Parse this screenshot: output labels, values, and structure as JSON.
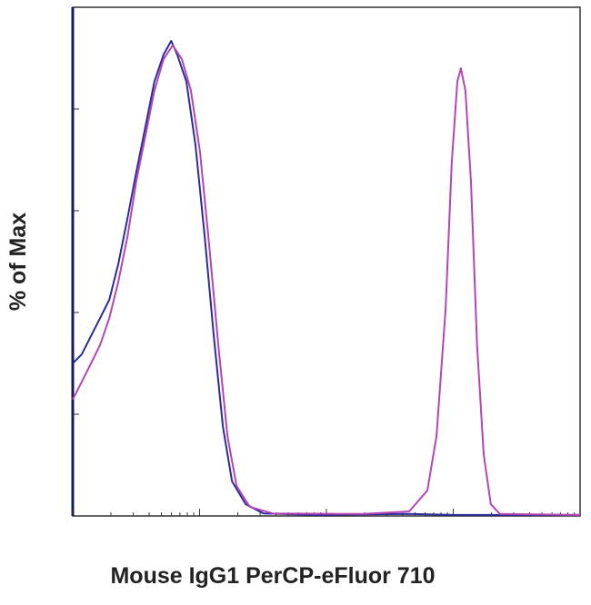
{
  "chart_data": {
    "type": "line",
    "x_label": "Mouse IgG1 PerCP-eFluor 710",
    "y_label": "% of Max",
    "xlim": [
      0,
      1000
    ],
    "ylim": [
      0,
      100
    ],
    "series": [
      {
        "color": "#2b2b9c",
        "x": [
          0,
          18,
          36,
          54,
          72,
          90,
          108,
          125,
          143,
          161,
          179,
          194,
          206,
          224,
          242,
          260,
          278,
          296,
          314,
          341,
          376,
          484,
          663,
          753,
          1000
        ],
        "values": [
          30,
          31.8,
          35.4,
          38.9,
          42.5,
          49.6,
          58.6,
          67.5,
          76.4,
          85.4,
          90.7,
          93.4,
          90.7,
          85.4,
          72.9,
          55,
          35.4,
          17.5,
          6.8,
          2.3,
          0.5,
          0.2,
          0.4,
          0.2,
          0.2
        ]
      },
      {
        "color": "#b445b4",
        "x": [
          0,
          18,
          36,
          54,
          72,
          90,
          108,
          125,
          143,
          161,
          179,
          197,
          215,
          233,
          251,
          269,
          287,
          305,
          323,
          349,
          394,
          573,
          663,
          699,
          717,
          735,
          747,
          758,
          765,
          774,
          785,
          797,
          810,
          824,
          842,
          1000
        ],
        "values": [
          22.9,
          26.4,
          30,
          33.6,
          38.9,
          46.1,
          55,
          65.7,
          74.6,
          83.6,
          89.8,
          92.5,
          89.8,
          83.6,
          71.4,
          53.2,
          33.6,
          15.7,
          5.9,
          1.8,
          0.5,
          0.4,
          0.9,
          5,
          15.7,
          40.7,
          69.3,
          85.4,
          88,
          83.6,
          65.7,
          33.6,
          12.1,
          2.3,
          0.4,
          0.2
        ]
      }
    ]
  }
}
